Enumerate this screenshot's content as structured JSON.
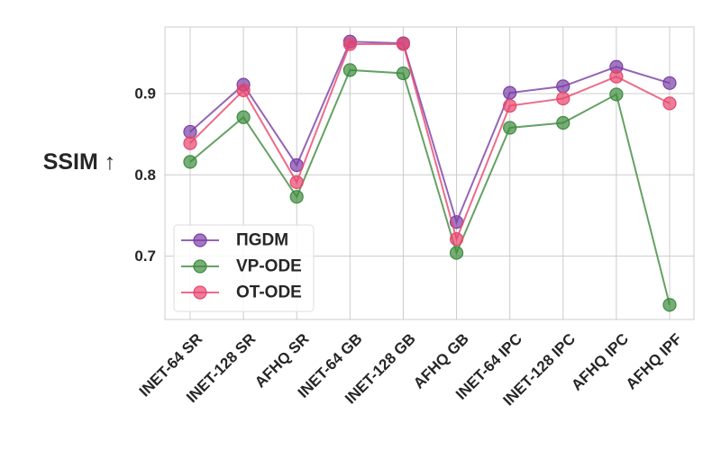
{
  "chart_data": {
    "type": "line",
    "title": "",
    "xlabel": "",
    "ylabel": "SSIM ↑",
    "categories": [
      "INET-64 SR",
      "INET-128 SR",
      "AFHQ SR",
      "INET-64 GB",
      "INET-128 GB",
      "AFHQ GB",
      "INET-64 IPC",
      "INET-128 IPC",
      "AFHQ IPC",
      "AFHQ IPF"
    ],
    "yticks": [
      "0.7",
      "0.8",
      "0.9"
    ],
    "ylim": [
      0.622,
      0.982
    ],
    "grid": true,
    "legend_position": "lower-left",
    "series": [
      {
        "name": "ΠGDM",
        "color": "#7b3fa6",
        "values": [
          0.853,
          0.911,
          0.812,
          0.964,
          0.962,
          0.742,
          0.901,
          0.909,
          0.933,
          0.913
        ]
      },
      {
        "name": "VP-ODE",
        "color": "#3d8b3d",
        "values": [
          0.816,
          0.871,
          0.773,
          0.929,
          0.925,
          0.704,
          0.858,
          0.864,
          0.899,
          0.64
        ]
      },
      {
        "name": "OT-ODE",
        "color": "#e8466d",
        "values": [
          0.839,
          0.904,
          0.791,
          0.961,
          0.961,
          0.721,
          0.885,
          0.894,
          0.921,
          0.888
        ]
      }
    ]
  }
}
